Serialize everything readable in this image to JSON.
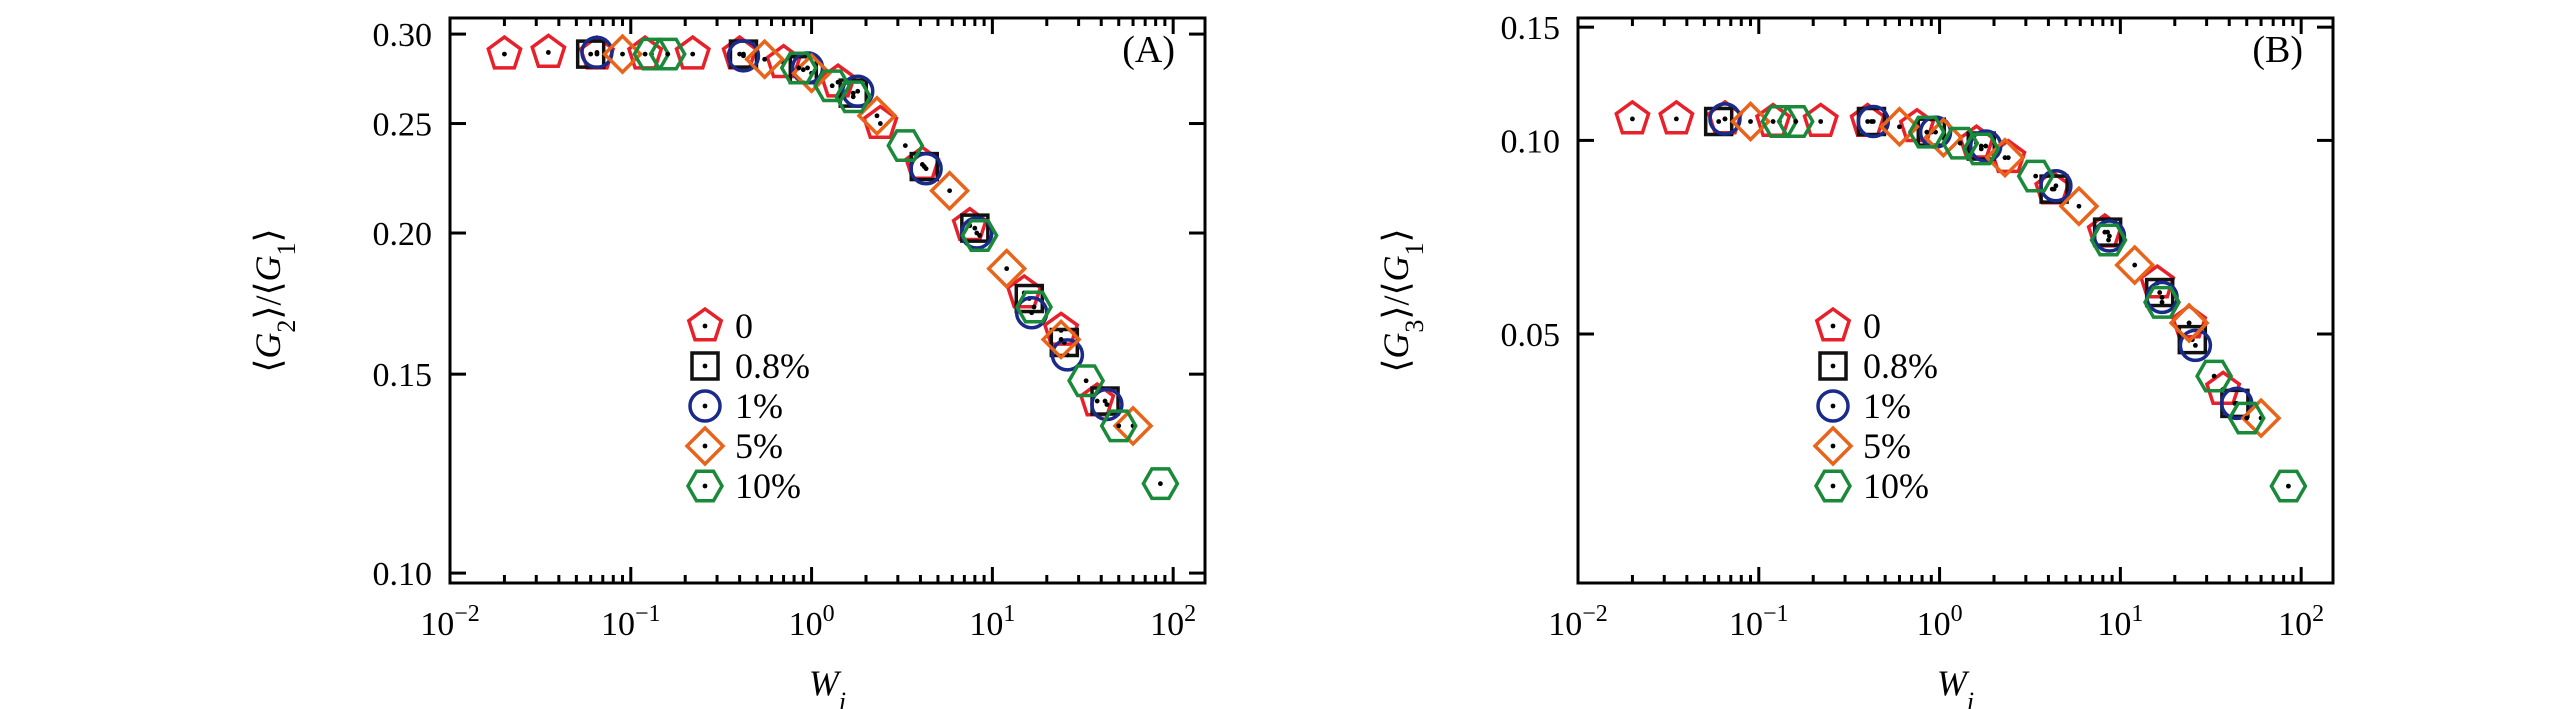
{
  "chart_data": [
    {
      "type": "scatter",
      "panel_label": "(A)",
      "xlabel": "W_i",
      "ylabel": "⟨G_2⟩/⟨G_1⟩",
      "x_scale": "log",
      "y_scale": "log",
      "xlim": [
        0.01,
        150
      ],
      "ylim": [
        0.098,
        0.31
      ],
      "xticks": [
        {
          "value": 0.01,
          "base": "10",
          "exp": "−2"
        },
        {
          "value": 0.1,
          "base": "10",
          "exp": "−1"
        },
        {
          "value": 1,
          "base": "10",
          "exp": "0"
        },
        {
          "value": 10,
          "base": "10",
          "exp": "1"
        },
        {
          "value": 100,
          "base": "10",
          "exp": "2"
        }
      ],
      "yticks": [
        {
          "value": 0.1,
          "label": "0.10"
        },
        {
          "value": 0.15,
          "label": "0.15"
        },
        {
          "value": 0.2,
          "label": "0.20"
        },
        {
          "value": 0.25,
          "label": "0.25"
        },
        {
          "value": 0.3,
          "label": "0.30"
        }
      ],
      "series": [
        {
          "name": "0",
          "marker": "pentagon",
          "color": "#e8202a",
          "x": [
            0.02,
            0.035,
            0.065,
            0.12,
            0.22,
            0.4,
            0.7,
            1.4,
            2.4,
            4.1,
            7.5,
            15,
            24,
            38
          ],
          "y": [
            0.288,
            0.289,
            0.288,
            0.288,
            0.288,
            0.288,
            0.283,
            0.272,
            0.25,
            0.23,
            0.203,
            0.177,
            0.164,
            0.142
          ]
        },
        {
          "name": "0.8%",
          "marker": "square",
          "color": "#111111",
          "x": [
            0.06,
            0.42,
            0.9,
            1.7,
            4.2,
            8.0,
            16,
            25,
            42
          ],
          "y": [
            0.288,
            0.288,
            0.279,
            0.266,
            0.229,
            0.202,
            0.175,
            0.16,
            0.142
          ]
        },
        {
          "name": "1%",
          "marker": "circle",
          "color": "#1a2a8a",
          "x": [
            0.065,
            0.42,
            0.95,
            1.8,
            4.3,
            8.2,
            16.5,
            26,
            43
          ],
          "y": [
            0.289,
            0.287,
            0.28,
            0.267,
            0.228,
            0.2,
            0.17,
            0.156,
            0.141
          ]
        },
        {
          "name": "5%",
          "marker": "diamond",
          "color": "#e8641a",
          "x": [
            0.09,
            0.55,
            1.0,
            2.3,
            5.8,
            12,
            24,
            60
          ],
          "y": [
            0.288,
            0.285,
            0.277,
            0.254,
            0.218,
            0.186,
            0.161,
            0.135
          ]
        },
        {
          "name": "10%",
          "marker": "hexagon",
          "color": "#1a8a3a",
          "x": [
            0.13,
            0.16,
            0.85,
            1.3,
            1.7,
            3.3,
            8.5,
            17,
            33,
            50,
            85
          ],
          "y": [
            0.288,
            0.288,
            0.28,
            0.27,
            0.264,
            0.239,
            0.199,
            0.172,
            0.148,
            0.135,
            0.12
          ]
        }
      ],
      "legend": {
        "placement": "lower-center"
      }
    },
    {
      "type": "scatter",
      "panel_label": "(B)",
      "xlabel": "W_i",
      "ylabel": "⟨G_3⟩/⟨G_1⟩",
      "x_scale": "log",
      "y_scale": "log",
      "xlim": [
        0.01,
        150
      ],
      "ylim": [
        0.0205,
        0.155
      ],
      "xticks": [
        {
          "value": 0.01,
          "base": "10",
          "exp": "−2"
        },
        {
          "value": 0.1,
          "base": "10",
          "exp": "−1"
        },
        {
          "value": 1,
          "base": "10",
          "exp": "0"
        },
        {
          "value": 10,
          "base": "10",
          "exp": "1"
        },
        {
          "value": 100,
          "base": "10",
          "exp": "2"
        }
      ],
      "yticks": [
        {
          "value": 0.05,
          "label": "0.05"
        },
        {
          "value": 0.1,
          "label": "0.10"
        },
        {
          "value": 0.15,
          "label": "0.15"
        }
      ],
      "series": [
        {
          "name": "0",
          "marker": "pentagon",
          "color": "#e8202a",
          "x": [
            0.02,
            0.035,
            0.065,
            0.12,
            0.22,
            0.4,
            0.75,
            1.6,
            2.4,
            4.2,
            8.2,
            16,
            24,
            37
          ],
          "y": [
            0.108,
            0.108,
            0.108,
            0.107,
            0.107,
            0.107,
            0.105,
            0.099,
            0.094,
            0.084,
            0.072,
            0.06,
            0.052,
            0.041
          ]
        },
        {
          "name": "0.8%",
          "marker": "square",
          "color": "#111111",
          "x": [
            0.06,
            0.42,
            0.9,
            1.7,
            4.3,
            8.5,
            16.5,
            25,
            43
          ],
          "y": [
            0.107,
            0.107,
            0.103,
            0.098,
            0.084,
            0.072,
            0.058,
            0.049,
            0.039
          ]
        },
        {
          "name": "1%",
          "marker": "circle",
          "color": "#1a2a8a",
          "x": [
            0.065,
            0.43,
            0.95,
            1.8,
            4.4,
            8.7,
            17,
            26,
            44
          ],
          "y": [
            0.108,
            0.107,
            0.103,
            0.098,
            0.085,
            0.071,
            0.057,
            0.048,
            0.039
          ]
        },
        {
          "name": "5%",
          "marker": "diamond",
          "color": "#e8641a",
          "x": [
            0.09,
            0.6,
            1.05,
            2.3,
            5.9,
            12,
            24,
            60
          ],
          "y": [
            0.107,
            0.105,
            0.101,
            0.094,
            0.079,
            0.064,
            0.052,
            0.037
          ]
        },
        {
          "name": "10%",
          "marker": "hexagon",
          "color": "#1a8a3a",
          "x": [
            0.13,
            0.16,
            0.85,
            1.3,
            1.7,
            3.4,
            8.6,
            17,
            33,
            50,
            85
          ],
          "y": [
            0.107,
            0.107,
            0.103,
            0.099,
            0.097,
            0.088,
            0.07,
            0.056,
            0.043,
            0.037,
            0.029
          ]
        }
      ],
      "legend": {
        "placement": "lower-center"
      }
    }
  ]
}
